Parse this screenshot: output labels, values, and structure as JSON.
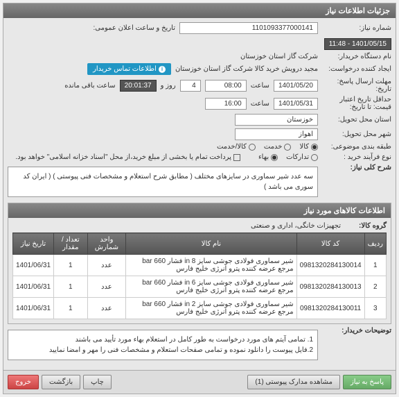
{
  "header": {
    "title": "جزئیات اطلاعات نیاز"
  },
  "fields": {
    "need_number_label": "شماره نیاز:",
    "need_number": "1101093377000141",
    "announce_label": "تاریخ و ساعت اعلان عمومی:",
    "announce_value": "1401/05/15 - 11:48",
    "org_label": "نام دستگاه خریدار:",
    "org_value": "شرکت گاز استان خوزستان",
    "creator_label": "ایجاد کننده درخواست:",
    "creator_value": "مجید درویش خرید کالا شرکت گاز استان خوزستان",
    "contact_btn": "اطلاعات تماس خریدار",
    "deadline_label": "مهلت ارسال پاسخ:",
    "deadline_label2": "تاریخ:",
    "deadline_date": "1401/05/20",
    "time_label": "ساعت",
    "deadline_time": "08:00",
    "day_label": "روز و",
    "day_value": "4",
    "remain_time": "20:01:37",
    "remain_label": "ساعت باقی مانده",
    "validity_label": "حداقل تاریخ اعتبار",
    "validity_label2": "قیمت: تا تاریخ:",
    "validity_date": "1401/05/31",
    "validity_time": "16:00",
    "province_label": "استان محل تحویل:",
    "province": "خوزستان",
    "city_label": "شهر محل تحویل:",
    "city": "اهواز",
    "category_label": "طبقه بندی موضوعی:",
    "cat1": "کالا",
    "cat2": "خدمت",
    "cat3": "کالا/خدمت",
    "process_label": "نوع فرآیند خرید :",
    "proc1": "تدارکات",
    "proc2": "بهاء",
    "payment_note": "پرداخت تمام یا بخشی از مبلغ خرید،از محل \"اسناد خزانه اسلامی\" خواهد بود.",
    "desc_label": "شرح کلی نیاز:",
    "desc_text": "سه عدد شیر سماوری در سایزهای مختلف ( مطابق شرح استعلام و مشخصات فنی پیوستی ) ( ایران کد سوری می باشد )"
  },
  "goods": {
    "header": "اطلاعات کالاهای مورد نیاز",
    "group_label": "گروه کالا:",
    "group_value": "تجهیزات خانگی، اداری و صنعتی",
    "columns": [
      "ردیف",
      "کد کالا",
      "نام کالا",
      "واحد شمارش",
      "تعداد / مقدار",
      "تاریخ نیاز"
    ],
    "rows": [
      [
        "1",
        "0981320284130014",
        "شیر سماوری فولادی جوشی سایز in 8 فشار bar 660 مرجع عرضه کننده پترو انرژی خلیج فارس",
        "عدد",
        "1",
        "1401/06/31"
      ],
      [
        "2",
        "0981320284130013",
        "شیر سماوری فولادی جوشی سایز in 6 فشار bar 660 مرجع عرضه کننده پترو انرژی خلیج فارس",
        "عدد",
        "1",
        "1401/06/31"
      ],
      [
        "3",
        "0981320284130011",
        "شیر سماوری فولادی جوشی سایز in 2 فشار bar 660 مرجع عرضه کننده پترو انرژی خلیج فارس",
        "عدد",
        "1",
        "1401/06/31"
      ]
    ]
  },
  "notes": {
    "label": "توضیحات خریدار:",
    "line1": "1. تمامی آیتم های مورد درخواست به طور کامل در استعلام بهاء مورد تأیید می باشند",
    "line2": "2.فایل پیوست را دانلود نموده و تمامی صفحات استعلام و مشخصات فنی را مهر و امضا نمایید"
  },
  "footer": {
    "respond": "پاسخ به نیاز",
    "attachments": "مشاهده مدارک پیوستی (1)",
    "print": "چاپ",
    "back": "بازگشت",
    "exit": "خروج"
  }
}
